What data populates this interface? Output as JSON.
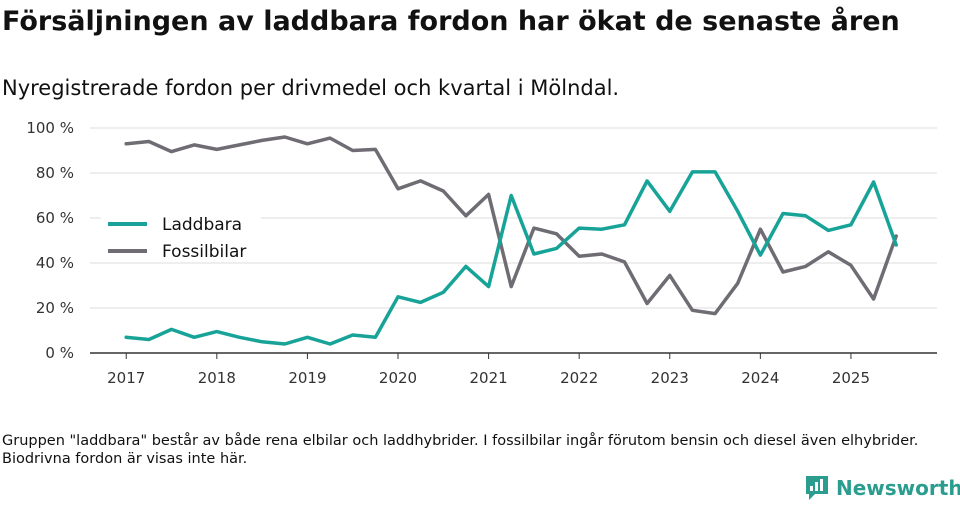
{
  "header": {
    "title": "Försäljningen av laddbara fordon har ökat de senaste åren",
    "subtitle": "Nyregistrerade fordon per drivmedel och kvartal i Mölndal."
  },
  "footnote": "Gruppen \"laddbara\" består av både rena elbilar och laddhybrider. I fossilbilar ingår förutom bensin och diesel även elhybrider. Biodrivna fordon är visas inte här.",
  "brand": {
    "name": "Newsworthy",
    "color": "#2a9d8f"
  },
  "chart_data": {
    "type": "line",
    "title": "Försäljningen av laddbara fordon har ökat de senaste åren",
    "xlabel": "",
    "ylabel": "",
    "xlim": [
      2016.6,
      2025.95
    ],
    "ylim": [
      0,
      100
    ],
    "grid": true,
    "legend_position": "left",
    "x_ticks": [
      2017,
      2018,
      2019,
      2020,
      2021,
      2022,
      2023,
      2024,
      2025
    ],
    "x_tick_labels": [
      "2017",
      "2018",
      "2019",
      "2020",
      "2021",
      "2022",
      "2023",
      "2024",
      "2025"
    ],
    "y_ticks": [
      0,
      20,
      40,
      60,
      80,
      100
    ],
    "y_tick_labels": [
      "0 %",
      "20 %",
      "40 %",
      "60 %",
      "80 %",
      "100 %"
    ],
    "x": [
      2017.0,
      2017.25,
      2017.5,
      2017.75,
      2018.0,
      2018.25,
      2018.5,
      2018.75,
      2019.0,
      2019.25,
      2019.5,
      2019.75,
      2020.0,
      2020.25,
      2020.5,
      2020.75,
      2021.0,
      2021.25,
      2021.5,
      2021.75,
      2022.0,
      2022.25,
      2022.5,
      2022.75,
      2023.0,
      2023.25,
      2023.5,
      2023.75,
      2024.0,
      2024.25,
      2024.5,
      2024.75,
      2025.0,
      2025.25,
      2025.5
    ],
    "series": [
      {
        "name": "Laddbara",
        "color": "#17a398",
        "values": [
          7,
          6,
          10.5,
          7,
          9.5,
          7,
          5,
          4,
          7,
          4,
          8,
          7,
          25,
          22.5,
          27,
          38.5,
          29.5,
          70,
          44,
          46.5,
          55.5,
          55,
          57,
          76.5,
          63,
          80.5,
          80.5,
          63,
          43.5,
          62,
          61,
          54.5,
          57,
          76,
          48
        ]
      },
      {
        "name": "Fossilbilar",
        "color": "#6f6c74",
        "values": [
          93,
          94,
          89.5,
          92.5,
          90.5,
          92.5,
          94.5,
          96,
          93,
          95.5,
          90,
          90.5,
          73,
          76.5,
          72,
          61,
          70.5,
          29.5,
          55.5,
          53,
          43,
          44,
          40.5,
          22,
          34.5,
          19,
          17.5,
          31,
          55,
          36,
          38.5,
          45,
          39,
          24,
          52
        ]
      }
    ]
  }
}
